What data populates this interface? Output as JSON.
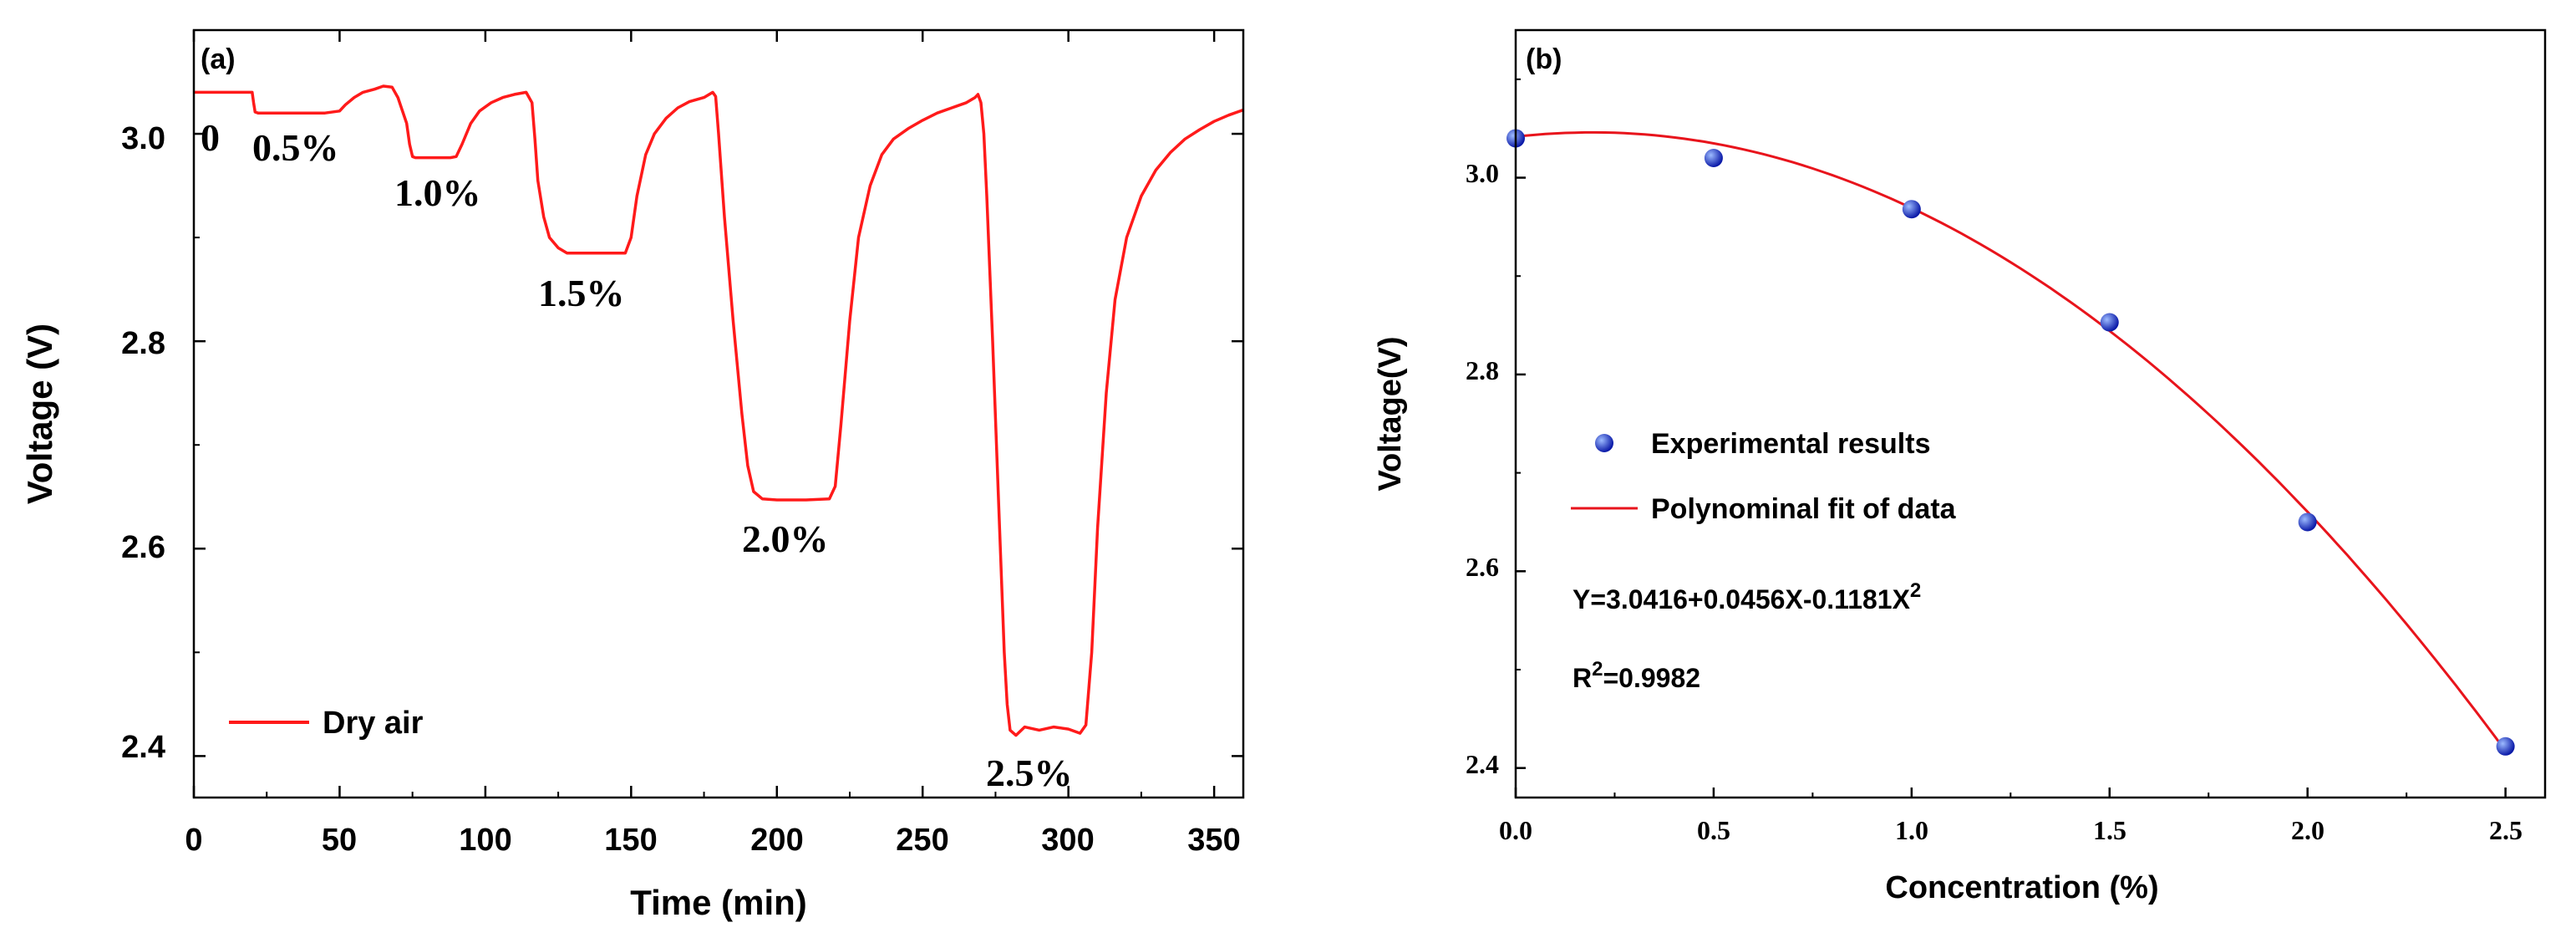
{
  "colors": {
    "curve": "#ff1a1a",
    "fit": "#e8141c",
    "marker_light": "#7aa2ff",
    "marker_dark": "#0b1aa8",
    "axis": "#000000"
  },
  "chart_data": [
    {
      "panel": "(a)",
      "type": "line",
      "xlabel": "Time (min)",
      "ylabel": "Voltage (V)",
      "xlim": [
        0,
        360
      ],
      "ylim": [
        2.36,
        3.1
      ],
      "xticks": [
        "0",
        "50",
        "100",
        "150",
        "200",
        "250",
        "300",
        "350"
      ],
      "yticks": [
        "2.4",
        "2.6",
        "2.8",
        "3.0"
      ],
      "legend": {
        "position": "bottom-left",
        "label": "Dry air"
      },
      "annotations": [
        "0",
        "0.5%",
        "1.0%",
        "1.5%",
        "2.0%",
        "2.5%"
      ],
      "series": [
        {
          "name": "Dry air",
          "x": [
            0,
            20,
            20.5,
            21,
            22,
            45,
            50,
            52,
            55,
            58,
            62,
            65,
            68,
            70,
            73,
            74,
            75,
            76,
            77,
            78,
            80,
            88,
            90,
            92,
            95,
            98,
            102,
            106,
            110,
            114,
            116,
            117,
            118,
            120,
            122,
            125,
            128,
            140,
            148,
            150,
            152,
            155,
            158,
            162,
            166,
            170,
            175,
            178,
            179,
            180,
            182,
            185,
            188,
            190,
            192,
            195,
            200,
            210,
            218,
            220,
            222,
            225,
            228,
            232,
            236,
            240,
            245,
            250,
            255,
            260,
            265,
            268,
            269,
            270,
            271,
            272,
            274,
            276,
            278,
            279,
            280,
            282,
            285,
            290,
            295,
            300,
            304,
            306,
            308,
            310,
            313,
            316,
            320,
            325,
            330,
            335,
            340,
            345,
            350,
            355,
            360
          ],
          "y": [
            3.04,
            3.04,
            3.03,
            3.021,
            3.02,
            3.02,
            3.022,
            3.028,
            3.035,
            3.04,
            3.043,
            3.046,
            3.045,
            3.035,
            3.01,
            2.99,
            2.978,
            2.977,
            2.977,
            2.977,
            2.977,
            2.977,
            2.978,
            2.99,
            3.01,
            3.022,
            3.03,
            3.035,
            3.038,
            3.04,
            3.03,
            2.995,
            2.955,
            2.92,
            2.9,
            2.89,
            2.885,
            2.885,
            2.885,
            2.9,
            2.94,
            2.98,
            3.0,
            3.015,
            3.025,
            3.031,
            3.035,
            3.04,
            3.036,
            3.0,
            2.92,
            2.82,
            2.73,
            2.68,
            2.655,
            2.648,
            2.647,
            2.647,
            2.648,
            2.66,
            2.72,
            2.82,
            2.9,
            2.95,
            2.98,
            2.995,
            3.005,
            3.013,
            3.02,
            3.025,
            3.03,
            3.035,
            3.038,
            3.03,
            3.0,
            2.94,
            2.8,
            2.65,
            2.5,
            2.45,
            2.425,
            2.42,
            2.428,
            2.425,
            2.428,
            2.426,
            2.422,
            2.43,
            2.5,
            2.62,
            2.75,
            2.84,
            2.9,
            2.94,
            2.965,
            2.982,
            2.995,
            3.004,
            3.012,
            3.018,
            3.023
          ]
        }
      ]
    },
    {
      "panel": "(b)",
      "type": "scatter",
      "xlabel": "Concentration (%)",
      "ylabel": "Voltage(V)",
      "xlim": [
        0,
        2.6
      ],
      "ylim": [
        2.37,
        3.15
      ],
      "xticks": [
        "0.0",
        "0.5",
        "1.0",
        "1.5",
        "2.0",
        "2.5"
      ],
      "yticks": [
        "2.4",
        "2.6",
        "2.8",
        "3.0"
      ],
      "legend": {
        "position": "center-left",
        "points_label": "Experimental results",
        "line_label": "Polynominal fit of data"
      },
      "equation": {
        "base": "Y=3.0416+0.0456X-0.1181X",
        "sup": "2"
      },
      "r2": {
        "prefix": "R",
        "sup": "2",
        "value": "=0.9982"
      },
      "series": [
        {
          "name": "Experimental results",
          "x": [
            0,
            0.5,
            1.0,
            1.5,
            2.0,
            2.5
          ],
          "y": [
            3.04,
            3.02,
            2.968,
            2.853,
            2.65,
            2.422
          ]
        },
        {
          "name": "Polynominal fit of data",
          "fit": {
            "a": 3.0416,
            "b": 0.0456,
            "c": -0.1181
          },
          "x_range": [
            0,
            2.5
          ]
        }
      ]
    }
  ]
}
